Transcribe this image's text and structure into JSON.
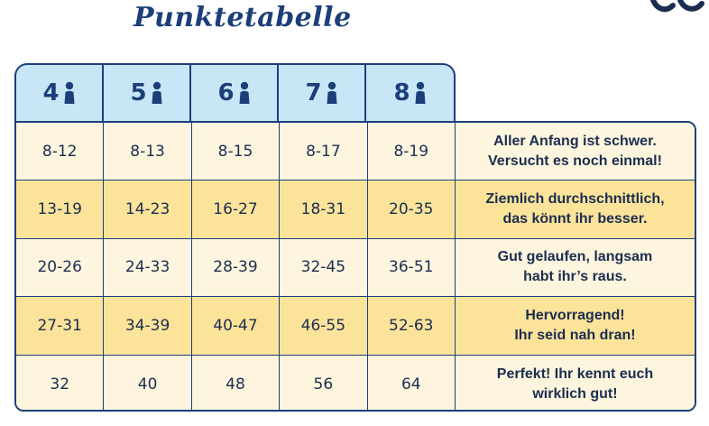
{
  "title": "Punktetabelle",
  "colors": {
    "navy": "#1c3f7a",
    "header_bg": "#c9e6f7",
    "row_light": "#fdf5de",
    "row_dark": "#fbe39a"
  },
  "headers": [
    {
      "players": "4",
      "icon": "person-icon"
    },
    {
      "players": "5",
      "icon": "person-icon"
    },
    {
      "players": "6",
      "icon": "person-icon"
    },
    {
      "players": "7",
      "icon": "person-icon"
    },
    {
      "players": "8",
      "icon": "person-icon"
    }
  ],
  "rows": [
    {
      "values": [
        "8-12",
        "8-13",
        "8-15",
        "8-17",
        "8-19"
      ],
      "text": "Aller Anfang ist schwer.\nVersucht es noch einmal!"
    },
    {
      "values": [
        "13-19",
        "14-23",
        "16-27",
        "18-31",
        "20-35"
      ],
      "text": "Ziemlich durchschnittlich,\ndas könnt ihr besser."
    },
    {
      "values": [
        "20-26",
        "24-33",
        "28-39",
        "32-45",
        "36-51"
      ],
      "text": "Gut gelaufen, langsam\nhabt ihr’s raus."
    },
    {
      "values": [
        "27-31",
        "34-39",
        "40-47",
        "46-55",
        "52-63"
      ],
      "text": "Hervorragend!\nIhr seid nah dran!"
    },
    {
      "values": [
        "32",
        "40",
        "48",
        "56",
        "64"
      ],
      "text": "Perfekt! Ihr kennt euch\nwirklich gut!"
    }
  ]
}
